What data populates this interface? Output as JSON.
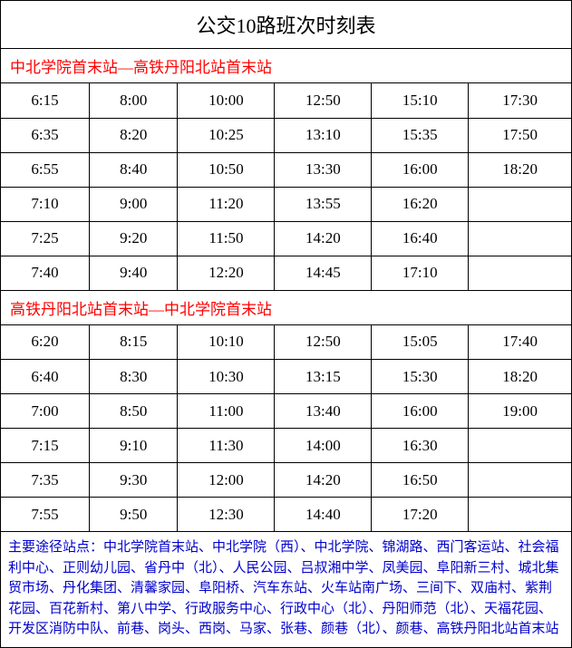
{
  "title": "公交10路班次时刻表",
  "title_color": "#000000",
  "section1": {
    "header": "中北学院首末站—高铁丹阳北站首末站",
    "header_color": "#ff0000",
    "rows": [
      [
        "6:15",
        "8:00",
        "10:00",
        "12:50",
        "15:10",
        "17:30"
      ],
      [
        "6:35",
        "8:20",
        "10:25",
        "13:10",
        "15:35",
        "17:50"
      ],
      [
        "6:55",
        "8:40",
        "10:50",
        "13:30",
        "16:00",
        "18:20"
      ],
      [
        "7:10",
        "9:00",
        "11:20",
        "13:55",
        "16:20",
        ""
      ],
      [
        "7:25",
        "9:20",
        "11:50",
        "14:20",
        "16:40",
        ""
      ],
      [
        "7:40",
        "9:40",
        "12:20",
        "14:45",
        "17:10",
        ""
      ]
    ]
  },
  "section2": {
    "header": "高铁丹阳北站首末站—中北学院首末站",
    "header_color": "#ff0000",
    "rows": [
      [
        "6:20",
        "8:15",
        "10:10",
        "12:50",
        "15:05",
        "17:40"
      ],
      [
        "6:40",
        "8:30",
        "10:30",
        "13:15",
        "15:30",
        "18:20"
      ],
      [
        "7:00",
        "8:50",
        "11:00",
        "13:40",
        "16:00",
        "19:00"
      ],
      [
        "7:15",
        "9:10",
        "11:30",
        "14:00",
        "16:30",
        ""
      ],
      [
        "7:35",
        "9:30",
        "12:00",
        "14:20",
        "16:50",
        ""
      ],
      [
        "7:55",
        "9:50",
        "12:30",
        "14:40",
        "17:20",
        ""
      ]
    ]
  },
  "footer": {
    "text": "主要途径站点：中北学院首末站、中北学院（西）、中北学院、锦湖路、西门客运站、社会福利中心、正则幼儿园、省丹中（北）、人民公园、吕叔湘中学、凤美园、阜阳新三村、城北集贸市场、丹化集团、清馨家园、阜阳桥、汽车东站、火车站南广场、三间下、双庙村、紫荆花园、百花新村、第八中学、行政服务中心、行政中心（北）、丹阳师范（北）、天福花园、开发区消防中队、前巷、岗头、西岗、马家、张巷、颜巷（北）、颜巷、高铁丹阳北站首末站",
    "color": "#0000cc"
  },
  "border_color": "#000000",
  "background_color": "#ffffff"
}
